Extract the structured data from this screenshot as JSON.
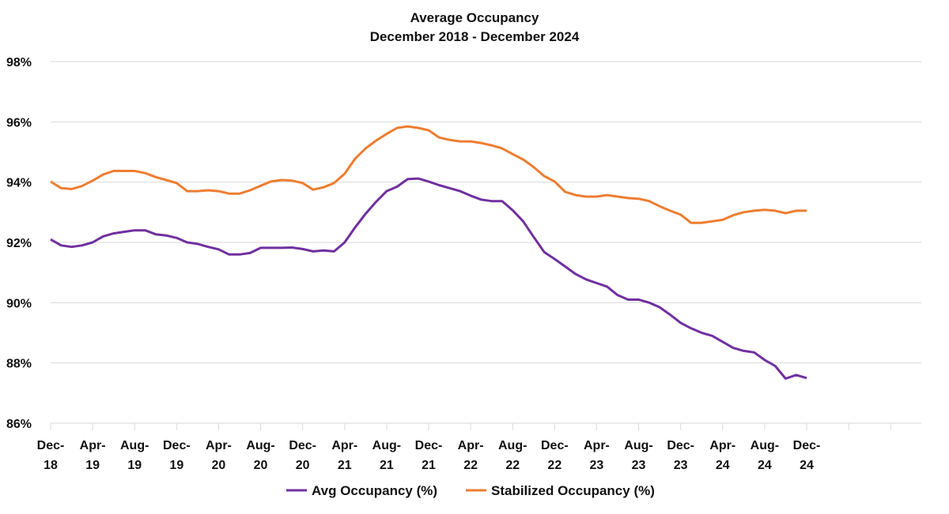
{
  "chart_data": {
    "type": "line",
    "title": "Average Occupancy",
    "subtitle": "December 2018 - December 2024",
    "xlabel": "",
    "ylabel": "",
    "ylim": [
      86,
      98
    ],
    "yticks": [
      86,
      88,
      90,
      92,
      94,
      96,
      98
    ],
    "ytick_labels": [
      "86%",
      "88%",
      "90%",
      "92%",
      "94%",
      "96%",
      "98%"
    ],
    "grid": true,
    "legend_position": "bottom",
    "x_tick_labels": [
      [
        "Dec-",
        "18"
      ],
      [
        "Apr-",
        "19"
      ],
      [
        "Aug-",
        "19"
      ],
      [
        "Dec-",
        "19"
      ],
      [
        "Apr-",
        "20"
      ],
      [
        "Aug-",
        "20"
      ],
      [
        "Dec-",
        "20"
      ],
      [
        "Apr-",
        "21"
      ],
      [
        "Aug-",
        "21"
      ],
      [
        "Dec-",
        "21"
      ],
      [
        "Apr-",
        "22"
      ],
      [
        "Aug-",
        "22"
      ],
      [
        "Dec-",
        "22"
      ],
      [
        "Apr-",
        "23"
      ],
      [
        "Aug-",
        "23"
      ],
      [
        "Dec-",
        "23"
      ],
      [
        "Apr-",
        "24"
      ],
      [
        "Aug-",
        "24"
      ],
      [
        "Dec-",
        "24"
      ]
    ],
    "x_note": "monthly points from Dec-18 to Dec-24; tick labels every 4 months",
    "series": [
      {
        "name": "Avg Occupancy (%)",
        "color": "#7030A0",
        "values": [
          92.1,
          91.9,
          91.85,
          91.9,
          92.0,
          92.2,
          92.3,
          92.35,
          92.4,
          92.4,
          92.27,
          92.23,
          92.15,
          92.0,
          91.95,
          91.85,
          91.77,
          91.6,
          91.6,
          91.65,
          91.82,
          91.82,
          91.82,
          91.83,
          91.78,
          91.7,
          91.73,
          91.7,
          92.0,
          92.5,
          92.95,
          93.35,
          93.7,
          93.85,
          94.1,
          94.12,
          94.02,
          93.9,
          93.8,
          93.7,
          93.55,
          93.42,
          93.37,
          93.37,
          93.07,
          92.7,
          92.18,
          91.68,
          91.45,
          91.2,
          90.95,
          90.77,
          90.65,
          90.53,
          90.25,
          90.1,
          90.1,
          90.0,
          89.85,
          89.6,
          89.33,
          89.15,
          89.0,
          88.9,
          88.7,
          88.5,
          88.4,
          88.35,
          88.1,
          87.9,
          87.48,
          87.6,
          87.5
        ]
      },
      {
        "name": "Stabilized Occupancy (%)",
        "color": "#ED7D31",
        "values": [
          94.02,
          93.8,
          93.77,
          93.87,
          94.05,
          94.25,
          94.37,
          94.37,
          94.37,
          94.3,
          94.17,
          94.07,
          93.97,
          93.7,
          93.7,
          93.73,
          93.7,
          93.62,
          93.62,
          93.73,
          93.88,
          94.02,
          94.07,
          94.05,
          93.97,
          93.75,
          93.83,
          93.97,
          94.28,
          94.78,
          95.12,
          95.38,
          95.6,
          95.8,
          95.85,
          95.8,
          95.72,
          95.48,
          95.4,
          95.35,
          95.35,
          95.3,
          95.22,
          95.12,
          94.93,
          94.75,
          94.5,
          94.2,
          94.02,
          93.68,
          93.57,
          93.52,
          93.52,
          93.57,
          93.52,
          93.47,
          93.45,
          93.37,
          93.2,
          93.05,
          92.92,
          92.65,
          92.65,
          92.7,
          92.75,
          92.9,
          93.0,
          93.05,
          93.08,
          93.05,
          92.97,
          93.05,
          93.05
        ]
      }
    ]
  }
}
